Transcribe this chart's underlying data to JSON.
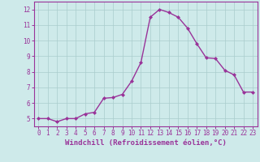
{
  "x": [
    0,
    1,
    2,
    3,
    4,
    5,
    6,
    7,
    8,
    9,
    10,
    11,
    12,
    13,
    14,
    15,
    16,
    17,
    18,
    19,
    20,
    21,
    22,
    23
  ],
  "y": [
    5.0,
    5.0,
    4.8,
    5.0,
    5.0,
    5.3,
    5.4,
    6.3,
    6.35,
    6.55,
    7.4,
    8.6,
    11.5,
    12.0,
    11.8,
    11.5,
    10.8,
    9.8,
    8.9,
    8.85,
    8.1,
    7.8,
    6.7,
    6.7
  ],
  "line_color": "#993399",
  "marker": "D",
  "marker_size": 2.0,
  "line_width": 1.0,
  "bg_color": "#ceeaea",
  "grid_color": "#aacccc",
  "xlabel": "Windchill (Refroidissement éolien,°C)",
  "xlabel_fontsize": 6.5,
  "tick_color": "#993399",
  "tick_fontsize": 5.5,
  "ylim": [
    4.5,
    12.5
  ],
  "xlim": [
    -0.5,
    23.5
  ],
  "yticks": [
    5,
    6,
    7,
    8,
    9,
    10,
    11,
    12
  ],
  "xticks": [
    0,
    1,
    2,
    3,
    4,
    5,
    6,
    7,
    8,
    9,
    10,
    11,
    12,
    13,
    14,
    15,
    16,
    17,
    18,
    19,
    20,
    21,
    22,
    23
  ],
  "spine_color": "#993399",
  "axis_line_color": "#993399"
}
